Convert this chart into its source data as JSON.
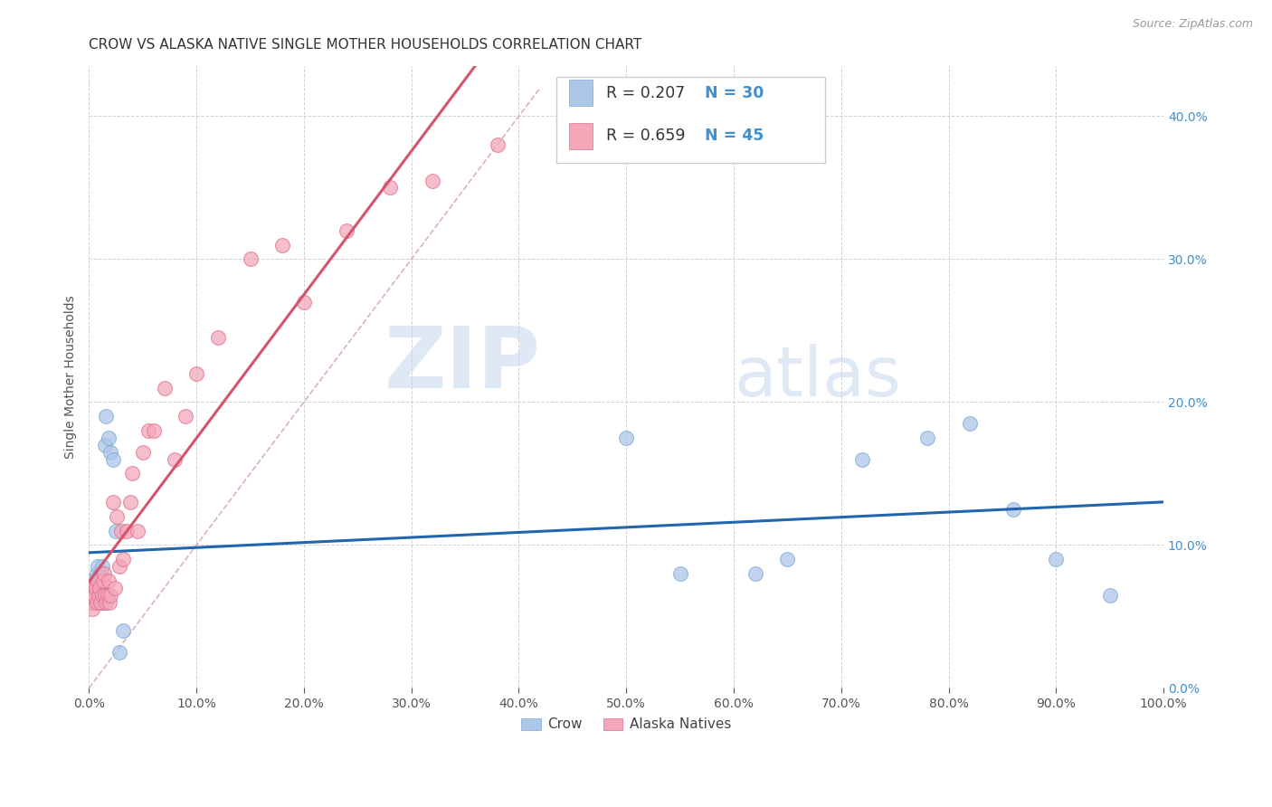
{
  "title": "CROW VS ALASKA NATIVE SINGLE MOTHER HOUSEHOLDS CORRELATION CHART",
  "source": "Source: ZipAtlas.com",
  "ylabel": "Single Mother Households",
  "watermark_zip": "ZIP",
  "watermark_atlas": "atlas",
  "xlim": [
    0,
    1.0
  ],
  "ylim": [
    0,
    0.42
  ],
  "xticks": [
    0.0,
    0.1,
    0.2,
    0.3,
    0.4,
    0.5,
    0.6,
    0.7,
    0.8,
    0.9,
    1.0
  ],
  "yticks": [
    0.0,
    0.1,
    0.2,
    0.3,
    0.4
  ],
  "crow_color": "#aec6e8",
  "crow_edge_color": "#7aaad4",
  "alaska_color": "#f4a7b9",
  "alaska_edge_color": "#e07090",
  "crow_line_color": "#2166ac",
  "alaska_line_color": "#d6536d",
  "diagonal_color": "#d0a0a8",
  "crow_R": "0.207",
  "crow_N": "30",
  "alaska_R": "0.659",
  "alaska_N": "45",
  "legend_label_crow": "Crow",
  "legend_label_alaska": "Alaska Natives",
  "crow_x": [
    0.002,
    0.003,
    0.004,
    0.005,
    0.006,
    0.007,
    0.008,
    0.009,
    0.01,
    0.011,
    0.012,
    0.013,
    0.015,
    0.016,
    0.018,
    0.02,
    0.022,
    0.025,
    0.028,
    0.032,
    0.5,
    0.55,
    0.62,
    0.65,
    0.72,
    0.78,
    0.82,
    0.86,
    0.9,
    0.95
  ],
  "crow_y": [
    0.075,
    0.06,
    0.065,
    0.07,
    0.065,
    0.08,
    0.085,
    0.065,
    0.06,
    0.08,
    0.085,
    0.06,
    0.17,
    0.19,
    0.175,
    0.165,
    0.16,
    0.11,
    0.025,
    0.04,
    0.175,
    0.08,
    0.08,
    0.09,
    0.16,
    0.175,
    0.185,
    0.125,
    0.09,
    0.065
  ],
  "alaska_x": [
    0.001,
    0.002,
    0.003,
    0.004,
    0.005,
    0.006,
    0.007,
    0.008,
    0.009,
    0.01,
    0.011,
    0.012,
    0.013,
    0.014,
    0.015,
    0.016,
    0.017,
    0.018,
    0.019,
    0.02,
    0.022,
    0.024,
    0.026,
    0.028,
    0.03,
    0.032,
    0.035,
    0.038,
    0.04,
    0.045,
    0.05,
    0.055,
    0.06,
    0.07,
    0.08,
    0.09,
    0.1,
    0.12,
    0.15,
    0.18,
    0.2,
    0.24,
    0.28,
    0.32,
    0.38
  ],
  "alaska_y": [
    0.06,
    0.065,
    0.055,
    0.07,
    0.065,
    0.07,
    0.06,
    0.075,
    0.065,
    0.07,
    0.06,
    0.065,
    0.075,
    0.08,
    0.065,
    0.06,
    0.065,
    0.075,
    0.06,
    0.065,
    0.13,
    0.07,
    0.12,
    0.085,
    0.11,
    0.09,
    0.11,
    0.13,
    0.15,
    0.11,
    0.165,
    0.18,
    0.18,
    0.21,
    0.16,
    0.19,
    0.22,
    0.245,
    0.3,
    0.31,
    0.27,
    0.32,
    0.35,
    0.355,
    0.38
  ],
  "title_fontsize": 11,
  "axis_label_color": "#4090d0",
  "tick_color": "#555555",
  "grid_color": "#cccccc",
  "background_color": "#ffffff"
}
